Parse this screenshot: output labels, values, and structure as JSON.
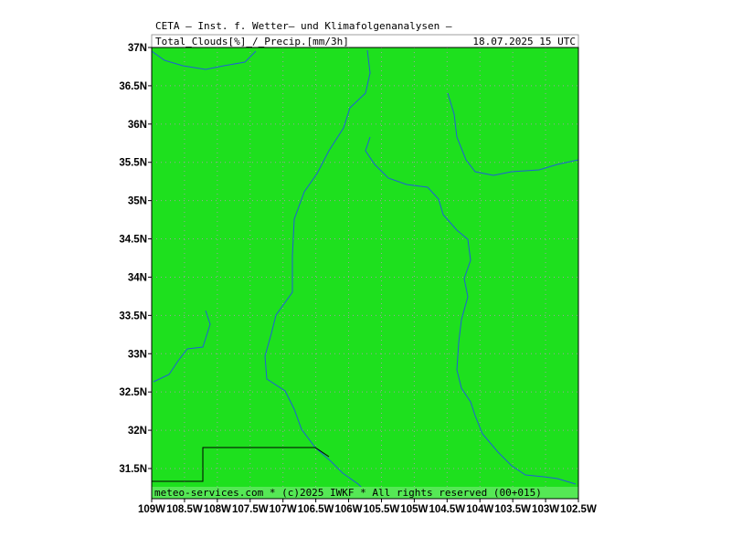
{
  "header": {
    "title": "CETA — Inst. f. Wetter— und Klimafolgenanalysen —",
    "parameter": "Total_Clouds[%]_/_Precip.[mm/3h]",
    "time": "18.07.2025 15 UTC"
  },
  "footer": "meteo-services.com * (c)2025 IWKF * All rights reserved (00+015)",
  "map": {
    "xlim": [
      -109,
      -102.5
    ],
    "ylim": [
      31.106,
      37
    ],
    "xticks": [
      {
        "value": -109,
        "label": "109W"
      },
      {
        "value": -108.5,
        "label": "108.5W"
      },
      {
        "value": -108,
        "label": "108W"
      },
      {
        "value": -107.5,
        "label": "107.5W"
      },
      {
        "value": -107,
        "label": "107W"
      },
      {
        "value": -106.5,
        "label": "106.5W"
      },
      {
        "value": -106,
        "label": "106W"
      },
      {
        "value": -105.5,
        "label": "105.5W"
      },
      {
        "value": -105,
        "label": "105W"
      },
      {
        "value": -104.5,
        "label": "104.5W"
      },
      {
        "value": -104,
        "label": "104W"
      },
      {
        "value": -103.5,
        "label": "103.5W"
      },
      {
        "value": -103,
        "label": "103W"
      },
      {
        "value": -102.5,
        "label": "102.5W"
      }
    ],
    "yticks": [
      {
        "value": 37,
        "label": "37N"
      },
      {
        "value": 36.5,
        "label": "36.5N"
      },
      {
        "value": 36,
        "label": "36N"
      },
      {
        "value": 35.5,
        "label": "35.5N"
      },
      {
        "value": 35,
        "label": "35N"
      },
      {
        "value": 34.5,
        "label": "34.5N"
      },
      {
        "value": 34,
        "label": "34N"
      },
      {
        "value": 33.5,
        "label": "33.5N"
      },
      {
        "value": 33,
        "label": "33N"
      },
      {
        "value": 32.5,
        "label": "32.5N"
      },
      {
        "value": 32,
        "label": "32N"
      },
      {
        "value": 31.5,
        "label": "31.5N"
      }
    ],
    "grid": true
  }
}
